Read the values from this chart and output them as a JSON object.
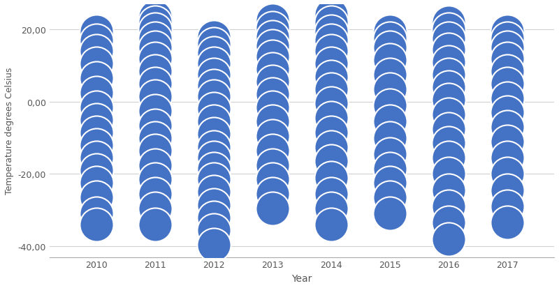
{
  "years": [
    2010,
    2011,
    2012,
    2013,
    2014,
    2015,
    2016,
    2017
  ],
  "temps_by_year": {
    "2010": [
      19.5,
      17.0,
      14.0,
      10.5,
      6.5,
      2.5,
      -1.5,
      -5.0,
      -8.5,
      -12.0,
      -15.5,
      -19.0,
      -22.5,
      -26.5,
      -31.0,
      -34.0
    ],
    "2011": [
      23.5,
      22.0,
      20.0,
      17.5,
      15.0,
      12.0,
      8.5,
      5.0,
      1.5,
      -2.5,
      -6.5,
      -10.0,
      -13.5,
      -17.5,
      -21.5,
      -25.5,
      -29.5,
      -34.0
    ],
    "2012": [
      18.0,
      16.0,
      13.5,
      10.5,
      7.5,
      4.5,
      1.5,
      -2.0,
      -5.5,
      -9.0,
      -12.5,
      -15.5,
      -18.5,
      -21.5,
      -25.0,
      -28.5,
      -32.0,
      -35.5,
      -39.5
    ],
    "2013": [
      22.5,
      20.5,
      18.0,
      15.5,
      12.5,
      9.0,
      5.5,
      2.0,
      -1.5,
      -5.5,
      -9.5,
      -13.5,
      -17.5,
      -21.5,
      -25.5,
      -29.5
    ],
    "2014": [
      24.0,
      22.0,
      19.5,
      17.0,
      14.0,
      10.5,
      7.0,
      3.5,
      -0.5,
      -4.5,
      -8.5,
      -12.5,
      -16.5,
      -21.0,
      -25.5,
      -29.5,
      -34.0
    ],
    "2015": [
      19.5,
      17.5,
      15.0,
      11.5,
      7.5,
      3.5,
      -1.0,
      -5.5,
      -10.0,
      -14.5,
      -18.5,
      -22.5,
      -26.5,
      -31.0
    ],
    "2016": [
      22.0,
      20.0,
      17.5,
      14.5,
      11.0,
      7.5,
      4.0,
      0.5,
      -3.5,
      -7.5,
      -11.5,
      -15.5,
      -20.0,
      -24.5,
      -29.0,
      -33.5,
      -38.0
    ],
    "2017": [
      19.5,
      17.5,
      15.0,
      12.0,
      8.5,
      5.0,
      1.0,
      -3.0,
      -7.0,
      -11.0,
      -15.5,
      -20.0,
      -24.5,
      -29.0,
      -33.5
    ]
  },
  "bubble_color": "#4472C4",
  "bubble_edge_color": "#ffffff",
  "background_color": "#ffffff",
  "grid_color": "#d0d0d0",
  "xlabel": "Year",
  "ylabel": "Temperature degrees Celsius",
  "ylim": [
    -43,
    27
  ],
  "yticks": [
    20.0,
    0.0,
    -20.0,
    -40.0
  ],
  "xticks": [
    2010,
    2011,
    2012,
    2013,
    2014,
    2015,
    2016,
    2017
  ],
  "xlim_left": 2009.2,
  "xlim_right": 2017.8
}
